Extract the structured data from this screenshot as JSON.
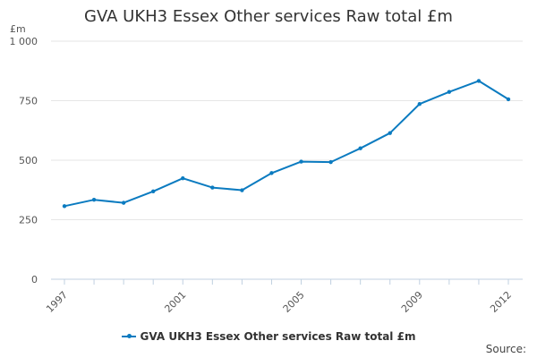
{
  "chart_data": {
    "type": "line",
    "title": "GVA UKH3 Essex Other services Raw total £m",
    "ylabel": "£m",
    "xlabel": "",
    "ylim": [
      0,
      1000
    ],
    "y_ticks": [
      0,
      250,
      500,
      750,
      1000
    ],
    "y_tick_labels": [
      "0",
      "250",
      "500",
      "750",
      "1 000"
    ],
    "x_tick_labels": [
      "1997",
      "2001",
      "2005",
      "2009",
      "2012"
    ],
    "x": [
      1997,
      1998,
      1999,
      2000,
      2001,
      2002,
      2003,
      2004,
      2005,
      2006,
      2007,
      2008,
      2009,
      2010,
      2011,
      2012
    ],
    "series": [
      {
        "name": "GVA UKH3 Essex Other services Raw total £m",
        "color": "#0b7bc0",
        "values": [
          307,
          334,
          321,
          369,
          424,
          385,
          374,
          446,
          494,
          492,
          550,
          614,
          736,
          787,
          833,
          756
        ]
      }
    ],
    "legend": "bottom",
    "grid": true
  },
  "source_label": "Source:"
}
